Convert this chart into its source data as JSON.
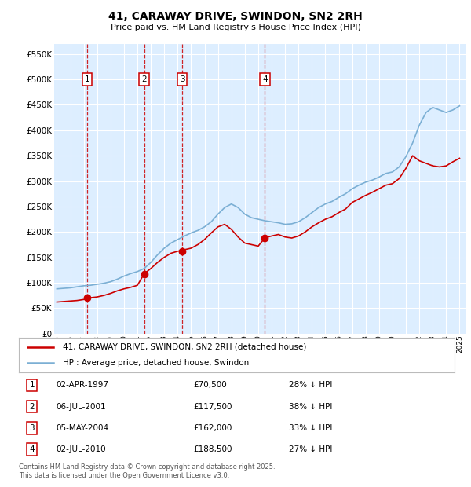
{
  "title": "41, CARAWAY DRIVE, SWINDON, SN2 2RH",
  "subtitle": "Price paid vs. HM Land Registry's House Price Index (HPI)",
  "legend_line1": "41, CARAWAY DRIVE, SWINDON, SN2 2RH (detached house)",
  "legend_line2": "HPI: Average price, detached house, Swindon",
  "footer_line1": "Contains HM Land Registry data © Crown copyright and database right 2025.",
  "footer_line2": "This data is licensed under the Open Government Licence v3.0.",
  "transactions": [
    {
      "num": 1,
      "date": "02-APR-1997",
      "price": 70500,
      "pct": "28%",
      "year": 1997.25
    },
    {
      "num": 2,
      "date": "06-JUL-2001",
      "price": 117500,
      "pct": "38%",
      "year": 2001.5
    },
    {
      "num": 3,
      "date": "05-MAY-2004",
      "price": 162000,
      "pct": "33%",
      "year": 2004.33
    },
    {
      "num": 4,
      "date": "02-JUL-2010",
      "price": 188500,
      "pct": "27%",
      "year": 2010.5
    }
  ],
  "hpi_line_color": "#7bafd4",
  "price_line_color": "#cc0000",
  "plot_bg_color": "#ddeeff",
  "grid_color": "#ffffff",
  "transaction_vline_color": "#cc0000",
  "ylim": [
    0,
    570000
  ],
  "yticks": [
    0,
    50000,
    100000,
    150000,
    200000,
    250000,
    300000,
    350000,
    400000,
    450000,
    500000,
    550000
  ],
  "xlim_start": 1994.8,
  "xlim_end": 2025.5,
  "hpi_years": [
    1995,
    1995.5,
    1996,
    1996.5,
    1997,
    1997.5,
    1998,
    1998.5,
    1999,
    1999.5,
    2000,
    2000.5,
    2001,
    2001.5,
    2002,
    2002.5,
    2003,
    2003.5,
    2004,
    2004.5,
    2005,
    2005.5,
    2006,
    2006.5,
    2007,
    2007.5,
    2008,
    2008.5,
    2009,
    2009.5,
    2010,
    2010.5,
    2011,
    2011.5,
    2012,
    2012.5,
    2013,
    2013.5,
    2014,
    2014.5,
    2015,
    2015.5,
    2016,
    2016.5,
    2017,
    2017.5,
    2018,
    2018.5,
    2019,
    2019.5,
    2020,
    2020.5,
    2021,
    2021.5,
    2022,
    2022.5,
    2023,
    2023.5,
    2024,
    2024.5,
    2025
  ],
  "hpi_values": [
    88000,
    89000,
    90000,
    92000,
    94000,
    95000,
    97000,
    99000,
    102000,
    107000,
    113000,
    118000,
    122000,
    128000,
    140000,
    155000,
    168000,
    178000,
    185000,
    192000,
    198000,
    203000,
    210000,
    220000,
    235000,
    248000,
    255000,
    248000,
    235000,
    228000,
    225000,
    222000,
    220000,
    218000,
    215000,
    216000,
    220000,
    228000,
    238000,
    248000,
    255000,
    260000,
    268000,
    275000,
    285000,
    292000,
    298000,
    302000,
    308000,
    315000,
    318000,
    328000,
    348000,
    375000,
    410000,
    435000,
    445000,
    440000,
    435000,
    440000,
    448000
  ],
  "price_years": [
    1995,
    1995.5,
    1996,
    1996.5,
    1997,
    1997.5,
    1998,
    1998.5,
    1999,
    1999.5,
    2000,
    2000.5,
    2001,
    2001.5,
    2002,
    2002.5,
    2003,
    2003.5,
    2004,
    2004.5,
    2005,
    2005.5,
    2006,
    2006.5,
    2007,
    2007.5,
    2008,
    2008.5,
    2009,
    2009.5,
    2010,
    2010.5,
    2011,
    2011.5,
    2012,
    2012.5,
    2013,
    2013.5,
    2014,
    2014.5,
    2015,
    2015.5,
    2016,
    2016.5,
    2017,
    2017.5,
    2018,
    2018.5,
    2019,
    2019.5,
    2020,
    2020.5,
    2021,
    2021.5,
    2022,
    2022.5,
    2023,
    2023.5,
    2024,
    2024.5,
    2025
  ],
  "price_values": [
    62000,
    63000,
    64000,
    65000,
    67000,
    70500,
    72000,
    75000,
    79000,
    84000,
    88000,
    91000,
    95000,
    117500,
    128000,
    140000,
    150000,
    158000,
    162000,
    165000,
    168000,
    175000,
    185000,
    198000,
    210000,
    215000,
    205000,
    190000,
    178000,
    175000,
    172000,
    188500,
    192000,
    195000,
    190000,
    188000,
    192000,
    200000,
    210000,
    218000,
    225000,
    230000,
    238000,
    245000,
    258000,
    265000,
    272000,
    278000,
    285000,
    292000,
    295000,
    305000,
    325000,
    350000,
    340000,
    335000,
    330000,
    328000,
    330000,
    338000,
    345000
  ]
}
